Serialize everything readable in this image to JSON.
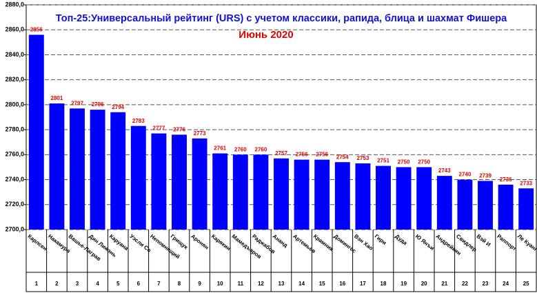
{
  "chart_data": {
    "type": "bar",
    "title": "Топ-25:Универсальный рейтинг (URS) с учетом классики, рапида, блица и шахмат Фишера",
    "subtitle": "Июнь 2020",
    "categories": [
      "Карлсен",
      "Накамура",
      "Вашье-Лаграв",
      "Дин Лижэнь",
      "Каруана",
      "Уэсли Со",
      "Непомнящий",
      "Грищук",
      "Аронян",
      "Карякин",
      "Мамедъяров",
      "Раджабов",
      "Ананд",
      "Артемьев",
      "Крамник",
      "Домингес",
      "Вэн Хао",
      "Гири",
      "Дуда",
      "Ю Янъи",
      "Андрейкин",
      "Свидлер",
      "Вэй И",
      "Раппорт",
      "Ле Куанг Льем"
    ],
    "ranks": [
      1,
      2,
      3,
      4,
      5,
      6,
      7,
      8,
      9,
      10,
      11,
      12,
      13,
      14,
      15,
      16,
      17,
      18,
      19,
      20,
      21,
      22,
      23,
      24,
      25
    ],
    "values": [
      2856,
      2801,
      2797,
      2796,
      2794,
      2783,
      2777,
      2776,
      2773,
      2761,
      2760,
      2760,
      2757,
      2756,
      2756,
      2754,
      2753,
      2751,
      2750,
      2750,
      2743,
      2740,
      2739,
      2736,
      2733
    ],
    "color": "#0000ff",
    "value_label_color": "#e00000",
    "ylim": [
      2700,
      2880
    ],
    "yticks": [
      {
        "value": 2700,
        "label": "2700,0"
      },
      {
        "value": 2720,
        "label": "2720,0"
      },
      {
        "value": 2740,
        "label": "2740,0"
      },
      {
        "value": 2760,
        "label": "2760,0"
      },
      {
        "value": 2780,
        "label": "2780,0"
      },
      {
        "value": 2800,
        "label": "2800,0"
      },
      {
        "value": 2820,
        "label": "2820,0"
      },
      {
        "value": 2840,
        "label": "2840,0"
      },
      {
        "value": 2860,
        "label": "2860,0"
      },
      {
        "value": 2880,
        "label": "2880,0"
      }
    ],
    "grid": true
  }
}
